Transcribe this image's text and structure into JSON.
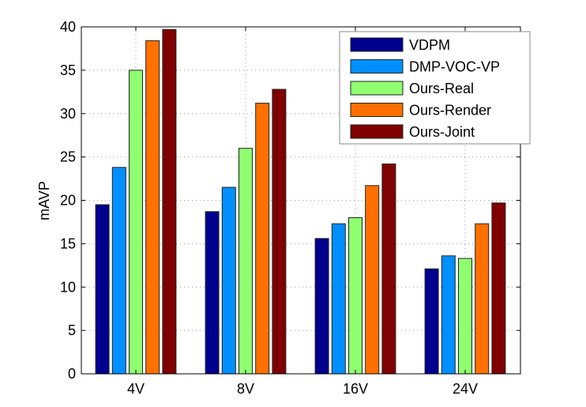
{
  "chart_data": {
    "type": "bar",
    "title": "",
    "xlabel": "",
    "ylabel": "mAVP",
    "ylim": [
      0,
      40
    ],
    "yticks": [
      0,
      5,
      10,
      15,
      20,
      25,
      30,
      35,
      40
    ],
    "grid": true,
    "legend_position": "top-right",
    "categories": [
      "4V",
      "8V",
      "16V",
      "24V"
    ],
    "series": [
      {
        "name": "VDPM",
        "color": "#00008f",
        "values": [
          19.5,
          18.7,
          15.6,
          12.1
        ]
      },
      {
        "name": "DMP-VOC-VP",
        "color": "#008fff",
        "values": [
          23.8,
          21.5,
          17.3,
          13.6
        ]
      },
      {
        "name": "Ours-Real",
        "color": "#8fff70",
        "values": [
          35.0,
          26.0,
          18.0,
          13.3
        ]
      },
      {
        "name": "Ours-Render",
        "color": "#ff7000",
        "values": [
          38.4,
          31.2,
          21.7,
          17.3
        ]
      },
      {
        "name": "Ours-Joint",
        "color": "#800000",
        "values": [
          39.7,
          32.8,
          24.2,
          19.7
        ]
      }
    ]
  }
}
